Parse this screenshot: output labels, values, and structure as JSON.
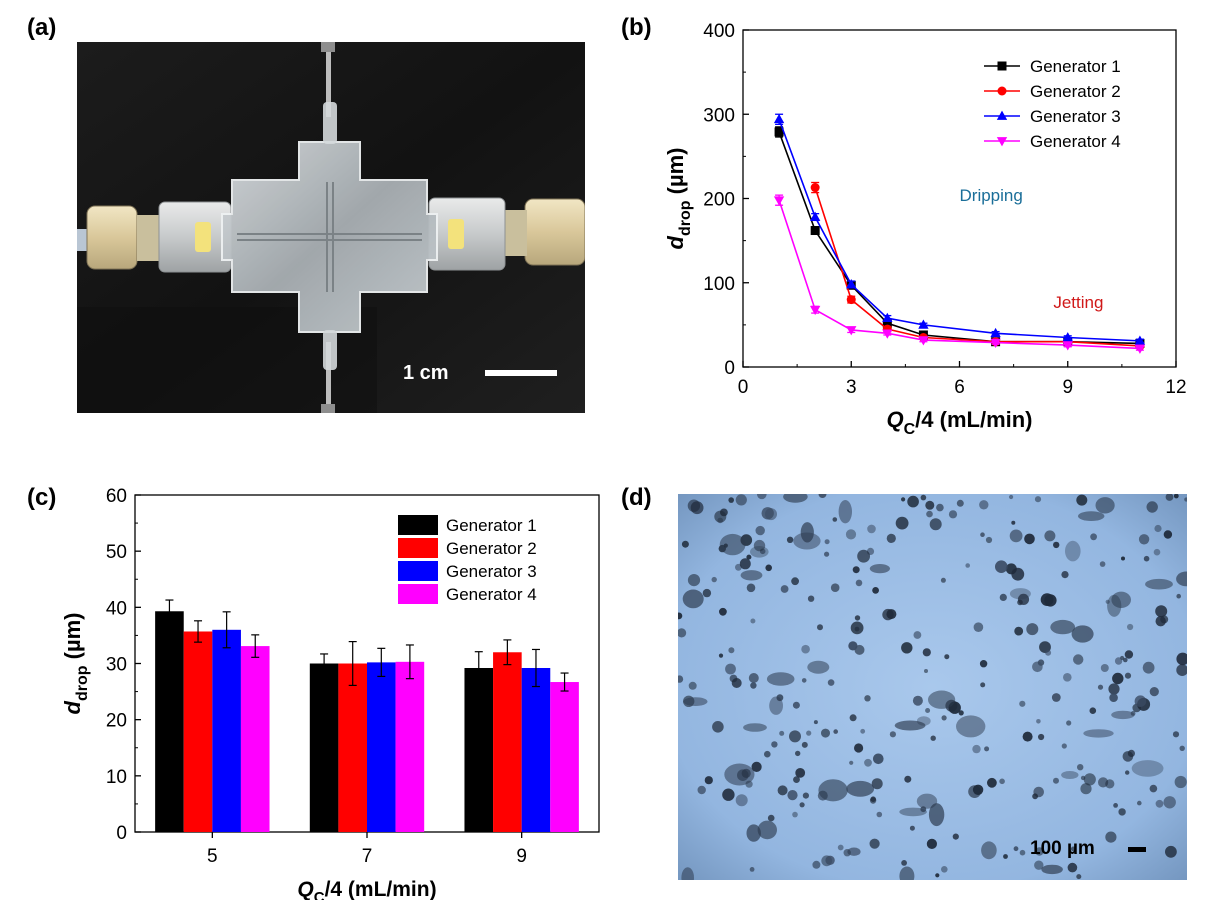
{
  "panels": {
    "a": {
      "label": "(a)",
      "scale_bar_text": "1 cm"
    },
    "b": {
      "label": "(b)"
    },
    "c": {
      "label": "(c)"
    },
    "d": {
      "label": "(d)",
      "scale_bar_text": "100 µm"
    }
  },
  "chart_data": [
    {
      "type": "line",
      "panel": "b",
      "xlabel": {
        "main": "Q",
        "sub": "C",
        "rest": "/4 (mL/min)"
      },
      "ylabel": {
        "main": "d",
        "sub": "drop",
        "rest": " (µm)"
      },
      "xlim": [
        0,
        12
      ],
      "ylim": [
        0,
        400
      ],
      "xticks": [
        0,
        3,
        6,
        9,
        12
      ],
      "yticks": [
        0,
        100,
        200,
        300,
        400
      ],
      "legend_position": "top-right",
      "annotations": [
        {
          "text": "Dripping",
          "x": 6,
          "y": 197,
          "color": "#1a6e99"
        },
        {
          "text": "Jetting",
          "x": 8.6,
          "y": 70,
          "color": "#d01818"
        }
      ],
      "series": [
        {
          "name": "Generator 1",
          "color": "#000000",
          "marker": "square",
          "x": [
            1,
            2,
            3,
            4,
            5,
            7,
            9,
            11
          ],
          "y": [
            279,
            162,
            97,
            52,
            38,
            30,
            30,
            28
          ],
          "err": [
            6,
            4,
            4,
            3,
            2,
            2,
            2,
            2
          ]
        },
        {
          "name": "Generator 2",
          "color": "#ff0000",
          "marker": "circle",
          "x": [
            2,
            3,
            4,
            5,
            7,
            9,
            11
          ],
          "y": [
            213,
            80,
            45,
            35,
            30,
            30,
            25
          ],
          "err": [
            6,
            4,
            3,
            2,
            2,
            2,
            2
          ]
        },
        {
          "name": "Generator 3",
          "color": "#0000ff",
          "marker": "triangle-up",
          "x": [
            1,
            2,
            3,
            4,
            5,
            7,
            9,
            11
          ],
          "y": [
            294,
            178,
            98,
            58,
            50,
            40,
            35,
            31
          ],
          "err": [
            6,
            4,
            4,
            3,
            2,
            2,
            2,
            2
          ]
        },
        {
          "name": "Generator 4",
          "color": "#ff00ff",
          "marker": "triangle-down",
          "x": [
            1,
            2,
            3,
            4,
            5,
            7,
            9,
            11
          ],
          "y": [
            198,
            68,
            44,
            40,
            32,
            29,
            26,
            22
          ],
          "err": [
            6,
            4,
            3,
            2,
            2,
            2,
            2,
            2
          ]
        }
      ]
    },
    {
      "type": "bar",
      "panel": "c",
      "categories": [
        "5",
        "7",
        "9"
      ],
      "xlabel": {
        "main": "Q",
        "sub": "C",
        "rest": "/4 (mL/min)"
      },
      "ylabel": {
        "main": "d",
        "sub": "drop",
        "rest": " (µm)"
      },
      "ylim": [
        0,
        60
      ],
      "yticks": [
        0,
        10,
        20,
        30,
        40,
        50,
        60
      ],
      "legend_position": "top-right",
      "series": [
        {
          "name": "Generator 1",
          "color": "#000000",
          "values": [
            39.3,
            30.0,
            29.2
          ],
          "err": [
            2.0,
            1.7,
            2.9
          ]
        },
        {
          "name": "Generator 2",
          "color": "#ff0000",
          "values": [
            35.7,
            30.0,
            32.0
          ],
          "err": [
            1.9,
            3.9,
            2.2
          ]
        },
        {
          "name": "Generator 3",
          "color": "#0000ff",
          "values": [
            36.0,
            30.2,
            29.2
          ],
          "err": [
            3.2,
            2.5,
            3.3
          ]
        },
        {
          "name": "Generator 4",
          "color": "#ff00ff",
          "values": [
            33.1,
            30.3,
            26.7
          ],
          "err": [
            2.0,
            3.0,
            1.6
          ]
        }
      ]
    }
  ]
}
